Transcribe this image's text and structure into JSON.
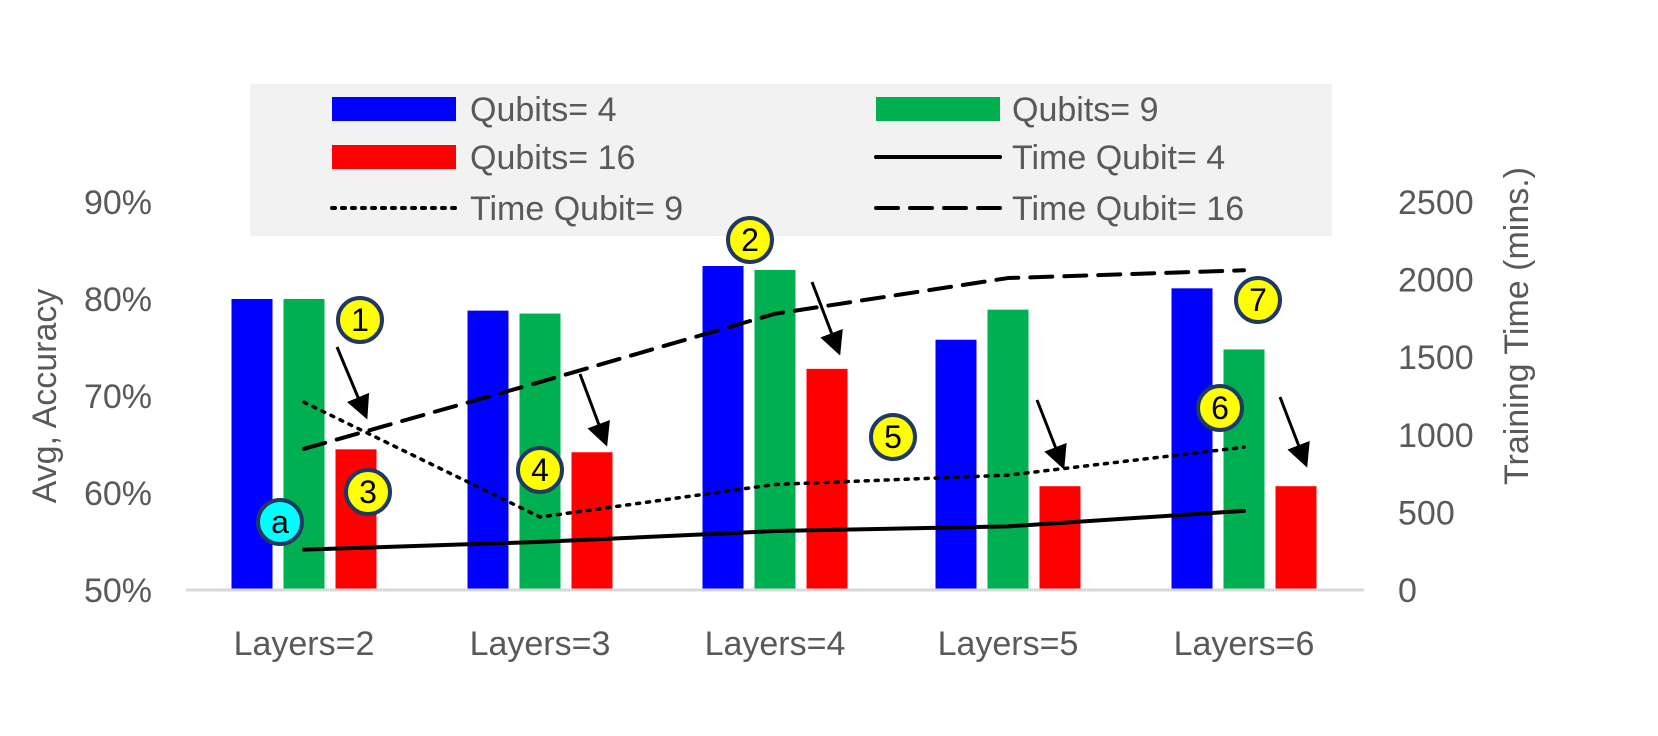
{
  "chart_data": {
    "type": "bar",
    "categories": [
      "Layers=2",
      "Layers=3",
      "Layers=4",
      "Layers=5",
      "Layers=6"
    ],
    "series": [
      {
        "name": "Qubits= 4",
        "kind": "bar",
        "axis": "left",
        "color": "#0000FF",
        "values": [
          80,
          78.8,
          83.4,
          75.8,
          81.1
        ]
      },
      {
        "name": "Qubits= 9",
        "kind": "bar",
        "axis": "left",
        "color": "#00B050",
        "values": [
          80,
          78.5,
          83,
          78.9,
          74.8
        ]
      },
      {
        "name": "Qubits= 16",
        "kind": "bar",
        "axis": "left",
        "color": "#FF0000",
        "values": [
          64.5,
          64.2,
          72.8,
          60.7,
          60.7
        ]
      },
      {
        "name": "Time Qubit= 4",
        "kind": "line",
        "axis": "right",
        "style": "solid",
        "color": "#000000",
        "values": [
          260,
          310,
          380,
          410,
          510
        ]
      },
      {
        "name": "Time Qubit= 9",
        "kind": "line",
        "axis": "right",
        "style": "dotted",
        "color": "#000000",
        "values": [
          1210,
          470,
          680,
          740,
          920
        ]
      },
      {
        "name": "Time Qubit= 16",
        "kind": "line",
        "axis": "right",
        "style": "dashed",
        "color": "#000000",
        "values": [
          910,
          1340,
          1780,
          2010,
          2060
        ]
      }
    ],
    "ylabel": "Avg, Accuracy",
    "y2label": "Training Time (mins.)",
    "ylim": [
      50,
      90
    ],
    "y2lim": [
      0,
      2500
    ],
    "yticks": [
      "50%",
      "60%",
      "70%",
      "80%",
      "90%"
    ],
    "y2ticks": [
      "0",
      "500",
      "1000",
      "1500",
      "2000",
      "2500"
    ],
    "grid": false,
    "legend_position": "top",
    "annotations": [
      "1",
      "2",
      "3",
      "4",
      "5",
      "6",
      "7",
      "a"
    ]
  }
}
